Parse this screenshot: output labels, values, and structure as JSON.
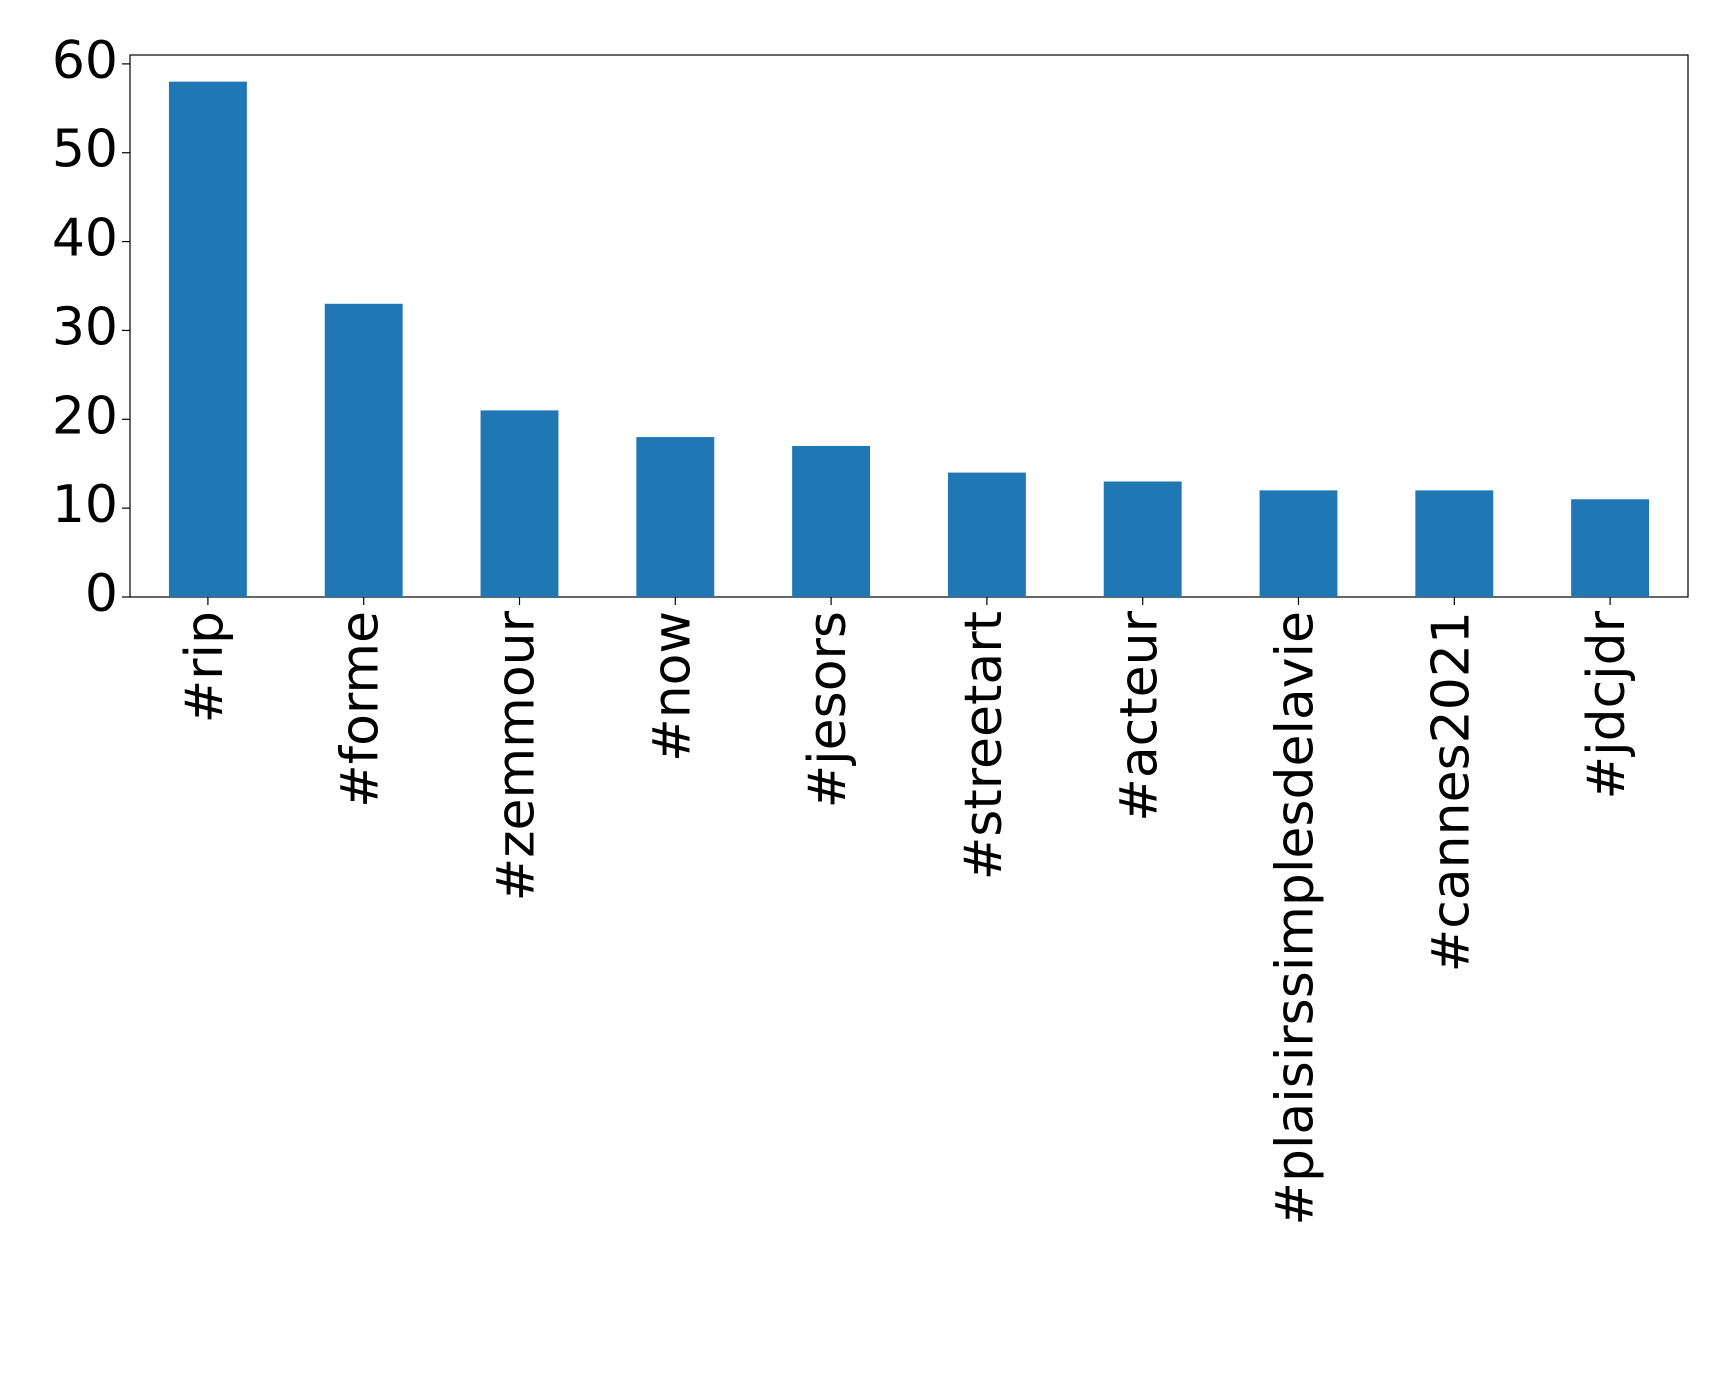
{
  "chart_data": {
    "type": "bar",
    "categories": [
      "#rip",
      "#forme",
      "#zemmour",
      "#now",
      "#jesors",
      "#streetart",
      "#acteur",
      "#plaisirssimplesdelavie",
      "#cannes2021",
      "#jdcjdr"
    ],
    "values": [
      58,
      33,
      21,
      18,
      17,
      14,
      13,
      12,
      12,
      11
    ],
    "color": "#1f77b4",
    "ylim": [
      0,
      61
    ],
    "yticks": [
      0,
      10,
      20,
      30,
      40,
      50,
      60
    ],
    "grid": false
  }
}
